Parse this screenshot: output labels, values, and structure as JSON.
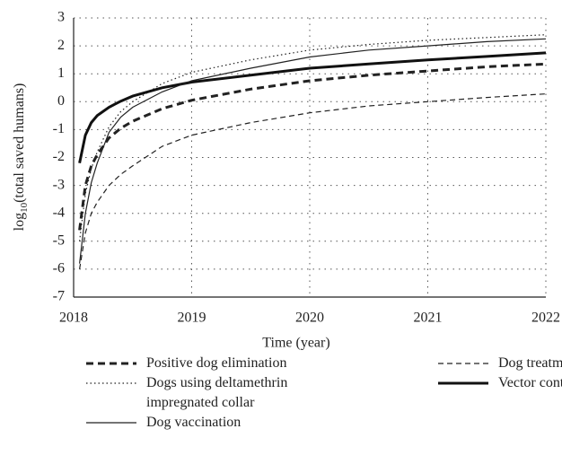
{
  "chart_data": {
    "type": "line",
    "y_label": [
      "log",
      "10",
      "(total saved humans)"
    ],
    "x_label": "Time (year)",
    "x": [
      2018.05,
      2018.1,
      2018.15,
      2018.2,
      2018.3,
      2018.4,
      2018.5,
      2018.75,
      2019,
      2019.5,
      2020,
      2020.5,
      2021,
      2021.5,
      2022
    ],
    "series": [
      {
        "name": "Positive dog elimination",
        "color": "#222222",
        "style": "dashed",
        "width": "thick",
        "values": [
          -4.6,
          -3.0,
          -2.3,
          -1.9,
          -1.3,
          -0.95,
          -0.7,
          -0.25,
          0.05,
          0.45,
          0.75,
          0.95,
          1.1,
          1.25,
          1.35
        ]
      },
      {
        "name": "Dog treatment",
        "color": "#222222",
        "style": "dashed",
        "width": "thin",
        "values": [
          -6.0,
          -4.7,
          -4.0,
          -3.6,
          -3.0,
          -2.6,
          -2.3,
          -1.6,
          -1.2,
          -0.75,
          -0.4,
          -0.15,
          0.0,
          0.15,
          0.28
        ]
      },
      {
        "name": "Dogs using deltamethrin impregnated collar",
        "color": "#222222",
        "style": "dotted",
        "width": "thin",
        "values": [
          -5.0,
          -3.3,
          -2.4,
          -1.8,
          -0.9,
          -0.35,
          0.0,
          0.65,
          1.05,
          1.5,
          1.85,
          2.05,
          2.2,
          2.3,
          2.4
        ]
      },
      {
        "name": "Vector control",
        "color": "#111111",
        "style": "solid",
        "width": "thick",
        "values": [
          -2.2,
          -1.2,
          -0.75,
          -0.5,
          -0.2,
          0.02,
          0.2,
          0.5,
          0.7,
          0.95,
          1.2,
          1.35,
          1.5,
          1.62,
          1.75
        ]
      },
      {
        "name": "Dog vaccination",
        "color": "#222222",
        "style": "solid",
        "width": "thin",
        "values": [
          -5.8,
          -4.0,
          -2.9,
          -2.2,
          -1.1,
          -0.55,
          -0.2,
          0.35,
          0.75,
          1.2,
          1.6,
          1.85,
          2.0,
          2.15,
          2.25
        ]
      }
    ],
    "xlim": [
      2018,
      2022
    ],
    "xticks": [
      2018,
      2019,
      2020,
      2021,
      2022
    ],
    "ylim": [
      -7,
      3
    ],
    "yticks": [
      -7,
      -6,
      -5,
      -4,
      -3,
      -2,
      -1,
      0,
      1,
      2,
      3
    ],
    "grid": true
  }
}
